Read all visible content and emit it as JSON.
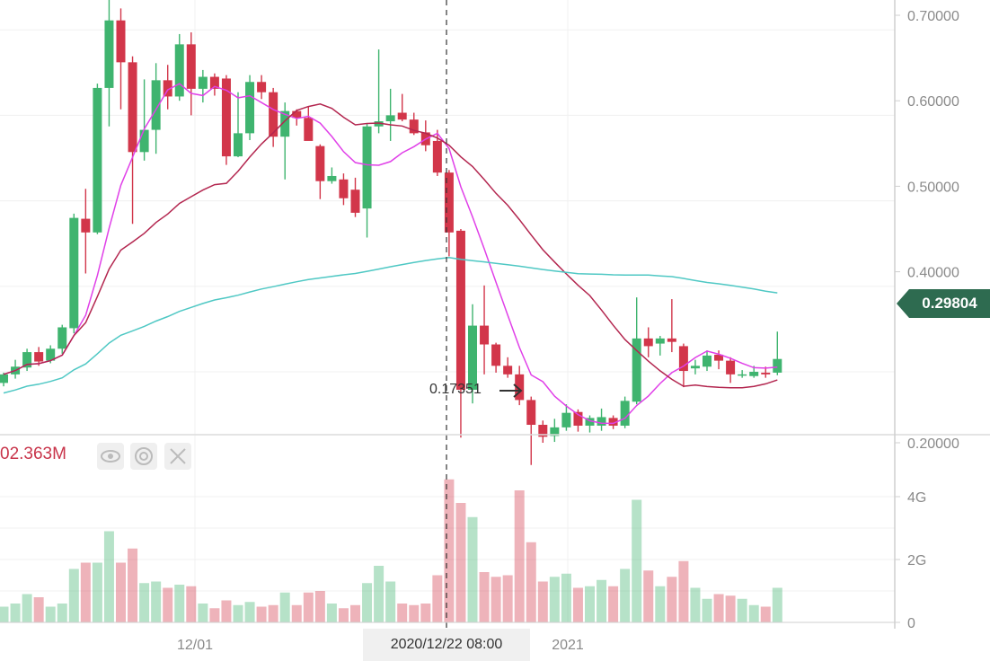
{
  "chart_data": {
    "type": "candlestick",
    "price_axis": {
      "ticks": [
        "0.70000",
        "0.60000",
        "0.50000",
        "0.40000",
        "0.20000"
      ],
      "tick_values": [
        0.7,
        0.6,
        0.5,
        0.4,
        0.2
      ],
      "range": [
        0.13,
        0.72
      ]
    },
    "volume_axis": {
      "ticks": [
        "4G",
        "2G",
        "0"
      ],
      "tick_values": [
        4,
        2,
        0
      ],
      "range": [
        0,
        5.9
      ]
    },
    "x_ticks": [
      "12/01",
      "2021"
    ],
    "crosshair_date": "2020/12/22 08:00",
    "current_price": "0.29804",
    "low_label": "0.17351",
    "volume_label": "02.363M",
    "candles": [
      [
        0.27,
        0.28,
        0.266,
        0.282,
        0.5
      ],
      [
        0.28,
        0.289,
        0.275,
        0.297,
        0.6
      ],
      [
        0.288,
        0.306,
        0.284,
        0.31,
        0.9
      ],
      [
        0.306,
        0.295,
        0.29,
        0.312,
        0.8
      ],
      [
        0.296,
        0.31,
        0.293,
        0.314,
        0.5
      ],
      [
        0.31,
        0.335,
        0.304,
        0.338,
        0.6
      ],
      [
        0.334,
        0.463,
        0.328,
        0.468,
        1.7
      ],
      [
        0.462,
        0.446,
        0.398,
        0.497,
        1.9
      ],
      [
        0.446,
        0.615,
        0.444,
        0.62,
        1.9
      ],
      [
        0.615,
        0.694,
        0.57,
        0.73,
        2.9
      ],
      [
        0.694,
        0.645,
        0.59,
        0.708,
        1.9
      ],
      [
        0.645,
        0.54,
        0.456,
        0.652,
        2.35
      ],
      [
        0.54,
        0.566,
        0.53,
        0.625,
        1.25
      ],
      [
        0.566,
        0.624,
        0.538,
        0.644,
        1.3
      ],
      [
        0.624,
        0.605,
        0.59,
        0.642,
        1.1
      ],
      [
        0.605,
        0.666,
        0.6,
        0.678,
        1.2
      ],
      [
        0.666,
        0.614,
        0.583,
        0.68,
        1.15
      ],
      [
        0.614,
        0.628,
        0.598,
        0.636,
        0.6
      ],
      [
        0.628,
        0.614,
        0.606,
        0.632,
        0.45
      ],
      [
        0.626,
        0.535,
        0.525,
        0.63,
        0.7
      ],
      [
        0.535,
        0.562,
        0.534,
        0.61,
        0.55
      ],
      [
        0.562,
        0.622,
        0.554,
        0.63,
        0.65
      ],
      [
        0.622,
        0.61,
        0.602,
        0.63,
        0.5
      ],
      [
        0.61,
        0.558,
        0.546,
        0.615,
        0.55
      ],
      [
        0.558,
        0.588,
        0.508,
        0.598,
        0.95
      ],
      [
        0.588,
        0.58,
        0.571,
        0.59,
        0.55
      ],
      [
        0.58,
        0.553,
        0.555,
        0.593,
        0.95
      ],
      [
        0.547,
        0.506,
        0.485,
        0.549,
        1.0
      ],
      [
        0.506,
        0.512,
        0.503,
        0.522,
        0.6
      ],
      [
        0.508,
        0.486,
        0.478,
        0.515,
        0.45
      ],
      [
        0.496,
        0.469,
        0.464,
        0.51,
        0.55
      ],
      [
        0.474,
        0.57,
        0.44,
        0.574,
        1.25
      ],
      [
        0.57,
        0.576,
        0.562,
        0.66,
        1.8
      ],
      [
        0.576,
        0.583,
        0.553,
        0.614,
        1.3
      ],
      [
        0.586,
        0.578,
        0.576,
        0.608,
        0.6
      ],
      [
        0.578,
        0.562,
        0.56,
        0.586,
        0.55
      ],
      [
        0.563,
        0.548,
        0.541,
        0.577,
        0.6
      ],
      [
        0.553,
        0.516,
        0.512,
        0.566,
        1.5
      ],
      [
        0.516,
        0.446,
        0.418,
        0.519,
        4.55
      ],
      [
        0.448,
        0.262,
        0.206,
        0.45,
        3.8
      ],
      [
        0.262,
        0.337,
        0.246,
        0.362,
        3.35
      ],
      [
        0.337,
        0.315,
        0.28,
        0.384,
        1.6
      ],
      [
        0.315,
        0.29,
        0.282,
        0.317,
        1.45
      ],
      [
        0.29,
        0.28,
        0.276,
        0.3,
        1.5
      ],
      [
        0.28,
        0.25,
        0.244,
        0.29,
        4.2
      ],
      [
        0.25,
        0.221,
        0.174,
        0.254,
        2.55
      ],
      [
        0.221,
        0.207,
        0.2,
        0.226,
        1.3
      ],
      [
        0.208,
        0.218,
        0.201,
        0.228,
        1.45
      ],
      [
        0.218,
        0.235,
        0.214,
        0.245,
        1.55
      ],
      [
        0.236,
        0.22,
        0.213,
        0.239,
        1.1
      ],
      [
        0.22,
        0.229,
        0.212,
        0.232,
        1.15
      ],
      [
        0.22,
        0.23,
        0.214,
        0.24,
        1.35
      ],
      [
        0.229,
        0.22,
        0.216,
        0.232,
        1.15
      ],
      [
        0.22,
        0.249,
        0.217,
        0.254,
        1.7
      ],
      [
        0.248,
        0.322,
        0.245,
        0.37,
        3.9
      ],
      [
        0.322,
        0.313,
        0.3,
        0.335,
        1.65
      ],
      [
        0.316,
        0.322,
        0.302,
        0.325,
        1.15
      ],
      [
        0.322,
        0.318,
        0.306,
        0.368,
        1.45
      ],
      [
        0.313,
        0.284,
        0.265,
        0.316,
        1.95
      ],
      [
        0.287,
        0.29,
        0.28,
        0.297,
        1.1
      ],
      [
        0.289,
        0.302,
        0.284,
        0.308,
        0.75
      ],
      [
        0.303,
        0.296,
        0.286,
        0.308,
        0.9
      ],
      [
        0.296,
        0.28,
        0.27,
        0.3,
        0.85
      ],
      [
        0.28,
        0.28,
        0.276,
        0.285,
        0.75
      ],
      [
        0.278,
        0.283,
        0.276,
        0.29,
        0.55
      ],
      [
        0.282,
        0.28,
        0.276,
        0.289,
        0.5
      ],
      [
        0.282,
        0.298,
        0.279,
        0.33,
        1.1
      ]
    ],
    "ma_short_color": "#e040e8",
    "ma_mid_color": "#b3264f",
    "ma_long_color": "#4fc8c4",
    "up_color": "#3fb46f",
    "down_color": "#d2364a"
  }
}
